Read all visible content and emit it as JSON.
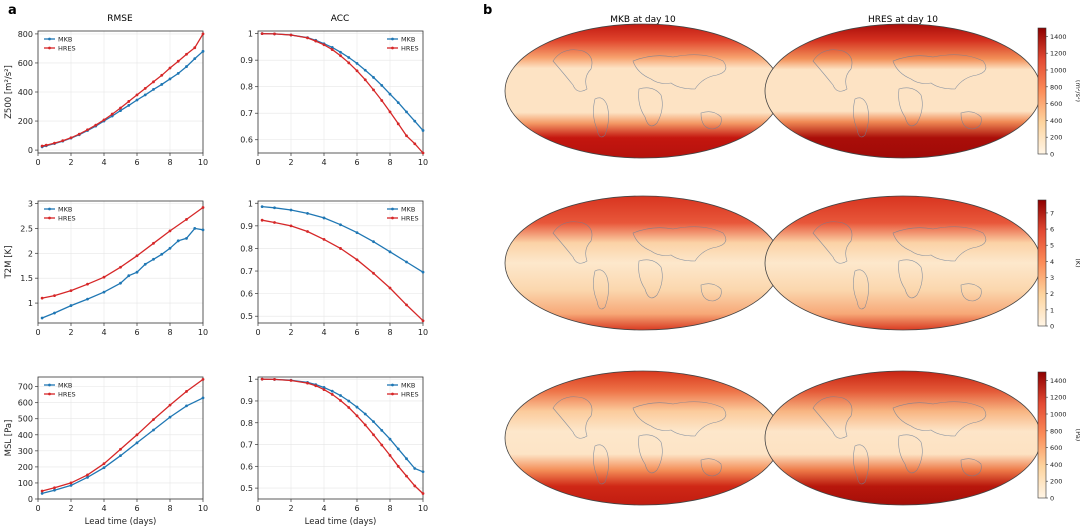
{
  "panel_labels": {
    "a": "a",
    "b": "b"
  },
  "colors": {
    "mkb": "#1f77b4",
    "hres": "#d62728",
    "map_low": "#fff2e1",
    "map_high": "#8e0000"
  },
  "col_titles": {
    "rmse": "RMSE",
    "acc": "ACC",
    "mkb_map": "MKB at day 10",
    "hres_map": "HRES at day 10"
  },
  "x_label": "Lead time (days)",
  "chart_data": [
    {
      "id": "z500-rmse",
      "type": "line",
      "title": "RMSE",
      "ylabel": "Z500 [m²/s²]",
      "xlabel": "",
      "xlim": [
        0,
        10
      ],
      "ylim": [
        -20,
        820
      ],
      "xticks": [
        0,
        2,
        4,
        6,
        8,
        10
      ],
      "yticks": [
        0,
        200,
        400,
        600,
        800
      ],
      "legend": "top-left",
      "series": [
        {
          "name": "MKB",
          "x": [
            0.25,
            0.5,
            1,
            1.5,
            2,
            2.5,
            3,
            3.5,
            4,
            4.5,
            5,
            5.5,
            6,
            6.5,
            7,
            7.5,
            8,
            8.5,
            9,
            9.5,
            10
          ],
          "y": [
            22,
            30,
            45,
            62,
            82,
            106,
            135,
            165,
            200,
            235,
            272,
            308,
            345,
            380,
            418,
            452,
            490,
            528,
            575,
            630,
            680
          ]
        },
        {
          "name": "HRES",
          "x": [
            0.25,
            0.5,
            1,
            1.5,
            2,
            2.5,
            3,
            3.5,
            4,
            4.5,
            5,
            5.5,
            6,
            6.5,
            7,
            7.5,
            8,
            8.5,
            9,
            9.5,
            10
          ],
          "y": [
            28,
            34,
            48,
            65,
            85,
            110,
            140,
            172,
            208,
            248,
            290,
            335,
            380,
            425,
            470,
            515,
            565,
            612,
            660,
            705,
            800
          ]
        }
      ]
    },
    {
      "id": "z500-acc",
      "type": "line",
      "title": "ACC",
      "ylabel": "",
      "xlabel": "",
      "xlim": [
        0,
        10
      ],
      "ylim": [
        0.55,
        1.01
      ],
      "xticks": [
        0,
        2,
        4,
        6,
        8,
        10
      ],
      "yticks": [
        0.6,
        0.7,
        0.8,
        0.9,
        1.0
      ],
      "legend": "top-right",
      "series": [
        {
          "name": "MKB",
          "x": [
            0.25,
            1,
            2,
            3,
            3.5,
            4,
            4.5,
            5,
            5.5,
            6,
            6.5,
            7,
            7.5,
            8,
            8.5,
            9,
            9.5,
            10
          ],
          "y": [
            1.0,
            0.999,
            0.995,
            0.985,
            0.975,
            0.962,
            0.948,
            0.93,
            0.91,
            0.888,
            0.862,
            0.835,
            0.805,
            0.772,
            0.74,
            0.705,
            0.67,
            0.635
          ]
        },
        {
          "name": "HRES",
          "x": [
            0.25,
            1,
            2,
            3,
            3.5,
            4,
            4.5,
            5,
            5.5,
            6,
            6.5,
            7,
            7.5,
            8,
            8.5,
            9,
            9.5,
            10
          ],
          "y": [
            1.0,
            0.999,
            0.995,
            0.984,
            0.972,
            0.958,
            0.94,
            0.917,
            0.89,
            0.86,
            0.826,
            0.788,
            0.748,
            0.705,
            0.66,
            0.615,
            0.585,
            0.55
          ]
        }
      ]
    },
    {
      "id": "t2m-rmse",
      "type": "line",
      "title": "",
      "ylabel": "T2M [K]",
      "xlabel": "",
      "xlim": [
        0,
        10
      ],
      "ylim": [
        0.6,
        3.05
      ],
      "xticks": [
        0,
        2,
        4,
        6,
        8,
        10
      ],
      "yticks": [
        1.0,
        1.5,
        2.0,
        2.5,
        3.0
      ],
      "legend": "top-left",
      "series": [
        {
          "name": "MKB",
          "x": [
            0.25,
            1,
            2,
            3,
            4,
            5,
            5.5,
            6,
            6.5,
            7,
            7.5,
            8,
            8.5,
            9,
            9.5,
            10
          ],
          "y": [
            0.7,
            0.8,
            0.95,
            1.08,
            1.22,
            1.4,
            1.55,
            1.62,
            1.78,
            1.88,
            1.98,
            2.1,
            2.25,
            2.3,
            2.5,
            2.47
          ]
        },
        {
          "name": "HRES",
          "x": [
            0.25,
            1,
            2,
            3,
            4,
            5,
            6,
            7,
            8,
            9,
            10
          ],
          "y": [
            1.1,
            1.15,
            1.25,
            1.38,
            1.52,
            1.72,
            1.95,
            2.2,
            2.45,
            2.68,
            2.92
          ]
        }
      ]
    },
    {
      "id": "t2m-acc",
      "type": "line",
      "title": "",
      "ylabel": "",
      "xlabel": "",
      "xlim": [
        0,
        10
      ],
      "ylim": [
        0.47,
        1.01
      ],
      "xticks": [
        0,
        2,
        4,
        6,
        8,
        10
      ],
      "yticks": [
        0.5,
        0.6,
        0.7,
        0.8,
        0.9,
        1.0
      ],
      "legend": "top-right",
      "series": [
        {
          "name": "MKB",
          "x": [
            0.25,
            1,
            2,
            3,
            4,
            5,
            6,
            7,
            8,
            9,
            10
          ],
          "y": [
            0.985,
            0.98,
            0.97,
            0.955,
            0.935,
            0.905,
            0.87,
            0.83,
            0.785,
            0.74,
            0.695
          ]
        },
        {
          "name": "HRES",
          "x": [
            0.25,
            1,
            2,
            3,
            4,
            5,
            6,
            7,
            8,
            9,
            10
          ],
          "y": [
            0.925,
            0.915,
            0.9,
            0.875,
            0.84,
            0.8,
            0.75,
            0.69,
            0.625,
            0.55,
            0.48
          ]
        }
      ]
    },
    {
      "id": "msl-rmse",
      "type": "line",
      "title": "",
      "ylabel": "MSL [Pa]",
      "xlabel": "Lead time (days)",
      "xlim": [
        0,
        10
      ],
      "ylim": [
        0,
        760
      ],
      "xticks": [
        0,
        2,
        4,
        6,
        8,
        10
      ],
      "yticks": [
        0,
        100,
        200,
        300,
        400,
        500,
        600,
        700
      ],
      "legend": "top-left",
      "series": [
        {
          "name": "MKB",
          "x": [
            0.25,
            1,
            2,
            3,
            4,
            5,
            6,
            7,
            8,
            9,
            10
          ],
          "y": [
            35,
            55,
            85,
            135,
            195,
            270,
            350,
            430,
            510,
            580,
            630
          ]
        },
        {
          "name": "HRES",
          "x": [
            0.25,
            1,
            2,
            3,
            4,
            5,
            6,
            7,
            8,
            9,
            10
          ],
          "y": [
            50,
            70,
            100,
            150,
            220,
            310,
            400,
            495,
            585,
            670,
            745
          ]
        }
      ]
    },
    {
      "id": "msl-acc",
      "type": "line",
      "title": "",
      "ylabel": "",
      "xlabel": "Lead time (days)",
      "xlim": [
        0,
        10
      ],
      "ylim": [
        0.45,
        1.01
      ],
      "xticks": [
        0,
        2,
        4,
        6,
        8,
        10
      ],
      "yticks": [
        0.5,
        0.6,
        0.7,
        0.8,
        0.9,
        1.0
      ],
      "legend": "top-right",
      "series": [
        {
          "name": "MKB",
          "x": [
            0.25,
            1,
            2,
            3,
            3.5,
            4,
            4.5,
            5,
            5.5,
            6,
            6.5,
            7,
            7.5,
            8,
            8.5,
            9,
            9.5,
            10
          ],
          "y": [
            1.0,
            0.999,
            0.995,
            0.985,
            0.975,
            0.962,
            0.945,
            0.925,
            0.9,
            0.872,
            0.84,
            0.805,
            0.765,
            0.725,
            0.68,
            0.635,
            0.59,
            0.575
          ]
        },
        {
          "name": "HRES",
          "x": [
            0.25,
            1,
            2,
            3,
            3.5,
            4,
            4.5,
            5,
            5.5,
            6,
            6.5,
            7,
            7.5,
            8,
            8.5,
            9,
            9.5,
            10
          ],
          "y": [
            1.0,
            0.999,
            0.994,
            0.982,
            0.97,
            0.952,
            0.93,
            0.902,
            0.87,
            0.832,
            0.79,
            0.745,
            0.698,
            0.65,
            0.6,
            0.555,
            0.51,
            0.475
          ]
        }
      ]
    },
    {
      "id": "z500-maps",
      "type": "heatmap",
      "titles": [
        "MKB at day 10",
        "HRES at day 10"
      ],
      "colorbar": {
        "label": "(m²/s²)",
        "range": [
          0,
          1500
        ],
        "ticks": [
          "0",
          "200",
          "400",
          "600",
          "800",
          "1000",
          "1200",
          "1400"
        ]
      }
    },
    {
      "id": "t2m-maps",
      "type": "heatmap",
      "colorbar": {
        "label": "(K)",
        "range": [
          0,
          7.8
        ],
        "ticks": [
          "0",
          "1",
          "2",
          "3",
          "4",
          "5",
          "6",
          "7"
        ]
      }
    },
    {
      "id": "msl-maps",
      "type": "heatmap",
      "colorbar": {
        "label": "(Pa)",
        "range": [
          0,
          1500
        ],
        "ticks": [
          "0",
          "200",
          "400",
          "600",
          "800",
          "1000",
          "1200",
          "1400"
        ]
      }
    }
  ]
}
